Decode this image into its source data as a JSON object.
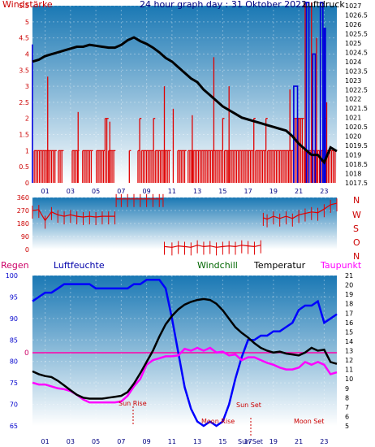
{
  "top": {
    "left_label": "Windstärke",
    "title": "24 hour graph day : 31 Oktober 2022",
    "right_label": "Luftdruck"
  },
  "mid": {
    "compass": [
      "N",
      "W",
      "S",
      "O",
      "N"
    ]
  },
  "bottom": {
    "labels": {
      "rain": "Regen",
      "humidity": "Luftfeuchte",
      "windchill": "Windchill",
      "temperature": "Temperatur",
      "dewpoint": "Taupunkt"
    },
    "zero_label": "0",
    "annotations": {
      "sun_rise": "Sun Rise",
      "moon_rise": "Moon Rise",
      "sun_set": "Sun Set",
      "sun_set_lower": "Sun Set",
      "moon_set": "Moon Set"
    }
  },
  "colors": {
    "background": "#ffffff",
    "plot_top": "#1a78b4",
    "plot_bottom": "#ffffff",
    "wind": "#e00000",
    "pressure": "#000000",
    "gust": "#0000dd",
    "humidity": "#0000ff",
    "temperature": "#000000",
    "dewpoint": "#ff00ff",
    "zero_line": "#ff00aa",
    "label_rain": "#cc0066",
    "label_windchill": "#006600",
    "label_dewpoint": "#ff00ff",
    "axis_red": "#cc0000",
    "axis_blue": "#000080"
  },
  "chart_data": [
    {
      "type": "line",
      "name": "wind-pressure",
      "x_ticks": [
        "01",
        "03",
        "05",
        "07",
        "09",
        "11",
        "13",
        "15",
        "17",
        "19",
        "21",
        "23"
      ],
      "y_left_ticks": [
        "0",
        "0.5",
        "1",
        "1.5",
        "2",
        "2.5",
        "3",
        "3.5",
        "4",
        "4.5",
        "5",
        "5.5"
      ],
      "y_left_range": [
        0,
        5.5
      ],
      "y_right_ticks": [
        "1017.5",
        "1018",
        "1018.5",
        "1019",
        "1019.5",
        "1020",
        "1020.5",
        "1021",
        "1021.5",
        "1022",
        "1022.5",
        "1023",
        "1023.5",
        "1024",
        "1024.5",
        "1025",
        "1025.5",
        "1026",
        "1026.5",
        "1027"
      ],
      "y_right_range": [
        1017.5,
        1027
      ],
      "pressure": {
        "x": [
          0,
          0.5,
          1,
          1.5,
          2,
          2.5,
          3,
          3.5,
          4,
          4.5,
          5,
          5.5,
          6,
          6.5,
          7,
          7.5,
          8,
          8.5,
          9,
          9.5,
          10,
          10.5,
          11,
          11.5,
          12,
          12.5,
          13,
          13.5,
          14,
          14.5,
          15,
          15.5,
          16,
          16.5,
          17,
          17.5,
          18,
          18.5,
          19,
          19.5,
          20,
          20.5,
          21,
          21.5,
          22,
          22.5,
          23,
          23.5,
          24
        ],
        "y": [
          1024.0,
          1024.1,
          1024.3,
          1024.4,
          1024.5,
          1024.6,
          1024.7,
          1024.8,
          1024.8,
          1024.9,
          1024.85,
          1024.8,
          1024.75,
          1024.75,
          1024.9,
          1025.15,
          1025.3,
          1025.1,
          1024.95,
          1024.75,
          1024.5,
          1024.2,
          1024.0,
          1023.7,
          1023.4,
          1023.1,
          1022.9,
          1022.5,
          1022.2,
          1021.9,
          1021.6,
          1021.4,
          1021.2,
          1021.0,
          1020.9,
          1020.8,
          1020.7,
          1020.6,
          1020.5,
          1020.4,
          1020.3,
          1020.0,
          1019.6,
          1019.3,
          1019.0,
          1019.0,
          1018.6,
          1019.4,
          1019.2
        ]
      },
      "wind_avg": [
        0,
        1,
        1,
        1,
        1,
        1,
        1,
        1,
        1,
        1,
        1,
        1,
        1,
        1,
        0,
        1,
        1,
        1,
        0,
        0,
        0,
        0,
        0,
        1,
        1,
        1,
        1,
        0,
        0,
        1,
        1,
        1,
        1,
        1,
        1,
        0,
        0,
        1,
        1,
        1,
        1,
        1,
        2,
        2,
        1,
        1,
        1,
        1,
        0,
        0,
        0,
        0,
        0,
        0,
        0,
        0,
        1,
        0,
        0,
        0,
        0,
        1,
        2,
        1,
        1,
        1,
        1,
        1,
        1,
        1,
        2,
        1,
        1,
        1,
        1,
        1,
        1,
        1,
        1,
        1,
        0,
        0,
        0,
        0,
        1,
        1,
        1,
        1,
        1,
        0,
        1,
        1,
        1,
        1,
        1,
        1,
        1,
        1,
        1,
        1,
        1,
        1,
        1,
        1,
        1,
        1,
        1,
        1,
        1,
        1,
        2,
        1,
        1,
        1,
        1,
        1,
        1,
        1,
        1,
        1,
        1,
        1,
        1,
        1,
        1,
        1,
        1,
        1,
        2,
        1,
        1,
        1,
        1,
        1,
        1,
        2,
        1,
        1,
        1,
        1,
        1,
        1,
        1,
        1,
        1,
        1,
        1,
        1,
        1,
        1,
        1,
        2,
        2,
        2,
        2,
        2,
        2,
        1,
        1,
        1,
        1,
        1,
        1,
        1,
        1,
        1,
        1,
        1,
        1,
        2,
        1,
        1,
        1,
        1,
        1,
        1
      ],
      "wind_peaks": [
        [
          1.2,
          3.3
        ],
        [
          3.6,
          2.2
        ],
        [
          6.1,
          1.9
        ],
        [
          10.4,
          3.0
        ],
        [
          11.1,
          2.3
        ],
        [
          12.6,
          2.1
        ],
        [
          14.3,
          3.9
        ],
        [
          15.5,
          3.0
        ],
        [
          20.3,
          2.9
        ],
        [
          21.5,
          5.6
        ],
        [
          22.0,
          5.6
        ],
        [
          22.4,
          4.5
        ],
        [
          22.7,
          5.6
        ],
        [
          23.2,
          2.5
        ]
      ],
      "gust_segments": [
        [
          0.0,
          0.0,
          4.3
        ],
        [
          20.6,
          20.9,
          3.0
        ],
        [
          21.6,
          21.8,
          5.6
        ],
        [
          22.1,
          22.3,
          4.0
        ],
        [
          22.7,
          22.9,
          5.6
        ],
        [
          23.0,
          23.1,
          4.8
        ]
      ]
    },
    {
      "type": "scatter",
      "name": "wind-direction",
      "y_ticks": [
        "0",
        "90",
        "180",
        "270",
        "360"
      ],
      "y_range": [
        0,
        360
      ],
      "x_range": [
        0,
        24
      ],
      "segments": [
        {
          "x": [
            0,
            0.5,
            1,
            1.5,
            2,
            2.5,
            3,
            3.5,
            4,
            4.5,
            5,
            5.5,
            6,
            6.5
          ],
          "y": [
            270,
            275,
            200,
            260,
            240,
            230,
            240,
            230,
            225,
            230,
            225,
            230,
            230,
            230
          ]
        },
        {
          "x": [
            6.6,
            7.0,
            7.5,
            8,
            8.5,
            9,
            9.5,
            10,
            10.3
          ],
          "y": [
            350,
            350,
            350,
            350,
            350,
            350,
            350,
            350,
            350
          ]
        },
        {
          "x": [
            10.4,
            11,
            11.5,
            12,
            12.5,
            13,
            13.5,
            14,
            14.5,
            15,
            15.5,
            16,
            16.5,
            17,
            17.5,
            18
          ],
          "y": [
            20,
            15,
            25,
            20,
            15,
            30,
            20,
            25,
            15,
            20,
            25,
            20,
            30,
            25,
            20,
            30
          ]
        },
        {
          "x": [
            18.2,
            18.5,
            19,
            19.5,
            20,
            20.5,
            21,
            21.5,
            22,
            22.5,
            23,
            23.5,
            24
          ],
          "y": [
            220,
            210,
            230,
            215,
            230,
            215,
            240,
            250,
            260,
            255,
            280,
            310,
            320
          ]
        }
      ]
    },
    {
      "type": "line",
      "name": "humidity-temperature",
      "y_left_ticks": [
        "65",
        "70",
        "75",
        "80",
        "85",
        "90",
        "95",
        "100"
      ],
      "y_left_range": [
        65,
        100
      ],
      "y_right_ticks": [
        "5",
        "6",
        "7",
        "8",
        "9",
        "10",
        "11",
        "12",
        "13",
        "14",
        "15",
        "16",
        "17",
        "18",
        "19",
        "20",
        "21"
      ],
      "y_right_range": [
        5,
        21
      ],
      "humidity": {
        "x": [
          0,
          0.5,
          1,
          1.5,
          2,
          2.5,
          3,
          3.5,
          4,
          4.5,
          5,
          5.5,
          6,
          6.5,
          7,
          7.5,
          8,
          8.5,
          9,
          9.5,
          10,
          10.5,
          11,
          11.5,
          12,
          12.5,
          13,
          13.5,
          14,
          14.5,
          15,
          15.5,
          16,
          16.5,
          17,
          17.5,
          18,
          18.5,
          19,
          19.5,
          20,
          20.5,
          21,
          21.5,
          22,
          22.5,
          23,
          23.5,
          24
        ],
        "y": [
          94,
          95,
          96,
          96,
          97,
          98,
          98,
          98,
          98,
          98,
          97,
          97,
          97,
          97,
          97,
          97,
          98,
          98,
          99,
          99,
          99,
          97,
          90,
          82,
          74,
          69,
          66,
          65,
          66,
          65,
          66,
          70,
          76,
          81,
          85,
          85,
          86,
          86,
          87,
          87,
          88,
          89,
          92,
          93,
          93,
          94,
          89,
          90,
          91
        ]
      },
      "temperature": {
        "x": [
          0,
          0.5,
          1,
          1.5,
          2,
          2.5,
          3,
          3.5,
          4,
          4.5,
          5,
          5.5,
          6,
          6.5,
          7,
          7.5,
          8,
          8.5,
          9,
          9.5,
          10,
          10.5,
          11,
          11.5,
          12,
          12.5,
          13,
          13.5,
          14,
          14.5,
          15,
          15.5,
          16,
          16.5,
          17,
          17.5,
          18,
          18.5,
          19,
          19.5,
          20,
          20.5,
          21,
          21.5,
          22,
          22.5,
          23,
          23.5,
          24
        ],
        "y": [
          10.8,
          10.5,
          10.3,
          10.2,
          9.8,
          9.3,
          8.8,
          8.3,
          8.0,
          7.9,
          7.9,
          7.9,
          8.0,
          8.1,
          8.2,
          8.6,
          9.5,
          10.6,
          11.8,
          13.0,
          14.5,
          15.8,
          16.7,
          17.4,
          17.9,
          18.2,
          18.4,
          18.5,
          18.4,
          18.0,
          17.3,
          16.4,
          15.5,
          14.9,
          14.4,
          13.8,
          13.3,
          13.0,
          12.8,
          12.9,
          12.7,
          12.6,
          12.5,
          12.8,
          13.3,
          13.0,
          13.1,
          11.8,
          11.6
        ]
      },
      "dewpoint": {
        "x": [
          0,
          0.5,
          1,
          1.5,
          2,
          2.5,
          3,
          3.5,
          4,
          4.5,
          5,
          5.5,
          6,
          6.5,
          7,
          7.5,
          8,
          8.5,
          9,
          9.5,
          10,
          10.5,
          11,
          11.5,
          12,
          12.5,
          13,
          13.5,
          14,
          14.5,
          15,
          15.5,
          16,
          16.5,
          17,
          17.5,
          18,
          18.5,
          19,
          19.5,
          20,
          20.5,
          21,
          21.5,
          22,
          22.5,
          23,
          23.5,
          24
        ],
        "y": [
          9.6,
          9.4,
          9.4,
          9.2,
          9.0,
          8.9,
          8.7,
          8.3,
          7.8,
          7.5,
          7.5,
          7.5,
          7.5,
          7.5,
          7.6,
          8.2,
          9.2,
          10.0,
          11.5,
          12.0,
          12.2,
          12.4,
          12.4,
          12.5,
          13.2,
          13.0,
          13.3,
          13.0,
          13.3,
          12.8,
          12.9,
          12.5,
          12.6,
          12.0,
          12.3,
          12.3,
          12.0,
          11.7,
          11.5,
          11.2,
          11.0,
          11.0,
          11.2,
          11.8,
          11.5,
          11.8,
          11.5,
          10.5,
          10.7
        ]
      }
    }
  ]
}
